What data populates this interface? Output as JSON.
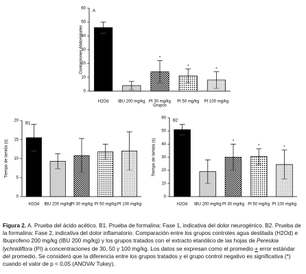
{
  "chart_data": [
    {
      "type": "bar",
      "panel_label": "A",
      "y_label": "Contorsiones Abdominales",
      "x_label": "Grupos",
      "categories": [
        "H2Od",
        "IBU 200 mg/kg",
        "PI 30 mg/kg",
        "PI 50 mg/kg",
        "PI 100 mg/kg"
      ],
      "values": [
        46,
        4,
        14,
        11,
        8
      ],
      "errors": [
        4,
        3,
        8,
        5,
        6
      ],
      "significance": [
        null,
        null,
        "*",
        "*",
        "*"
      ],
      "patterns": [
        "solid-black",
        "solid-gray",
        "checker",
        "dots",
        "dense-dots"
      ],
      "ylim": [
        0,
        60
      ],
      "yticks": [
        0,
        10,
        20,
        30,
        40,
        50,
        60
      ]
    },
    {
      "type": "bar",
      "panel_label": "B1",
      "y_label": "Tiempo de lamida (s)",
      "categories": [
        "H2Od",
        "IBU 200 mg/kg",
        "PI 30 mg/kg",
        "PI 50 mg/kg",
        "PI 100 mg/kg"
      ],
      "values": [
        15.5,
        9.3,
        10.8,
        11.8,
        12
      ],
      "errors": [
        3.5,
        2,
        4.5,
        2,
        5
      ],
      "patterns": [
        "solid-black",
        "solid-gray",
        "checker",
        "dots",
        "dense-dots"
      ],
      "ylim": [
        0,
        20
      ],
      "yticks": [
        0,
        5,
        10,
        15,
        20
      ]
    },
    {
      "type": "bar",
      "panel_label": "B2",
      "y_label": "Tiempo de lamida (s)",
      "categories": [
        "H2Od",
        "IBU 200 mg/kg",
        "PI 30 mg/kg",
        "PI 50 mg/kg",
        "PI 100 mg/kg"
      ],
      "values": [
        51,
        19,
        30,
        30.5,
        24.5
      ],
      "errors": [
        4,
        9,
        10,
        6,
        11
      ],
      "significance": [
        null,
        null,
        "*",
        "*",
        "*"
      ],
      "patterns": [
        "solid-black",
        "solid-gray",
        "checker",
        "dots",
        "dense-dots"
      ],
      "ylim": [
        0,
        60
      ],
      "yticks": [
        0,
        10,
        20,
        30,
        40,
        50,
        60
      ]
    }
  ],
  "caption": {
    "label": "Figura 2.",
    "parts": [
      " A. Prueba del ácido acético. B1. Prueba de formalina: Fase 1, indicativa del dolor neurogénico. B2. Prueba de la formalina: Fase 2, indicativa del dolor inflamatorio. Comparación entre los grupos controles agua destilada (H2Od) e Ibuprofeno 200 mg/kg (IBU 200 mg/kg) y los grupos tratados con el extracto etanólico de las hojas de ",
      "Pereskia lychnidiflora",
      " (PI) a concentraciones de 30, 50 y 100 mg/kg. Los datos se expresan como el promedio ",
      "+",
      " error estándar del promedio. Se consideró que la diferencia entre los grupos tratados y el grupo control negativo es significativa (*) cuando el valor de p < 0,05 (ANOVA/ Tukey)."
    ]
  }
}
